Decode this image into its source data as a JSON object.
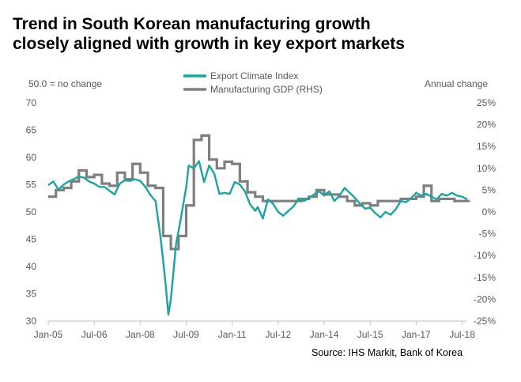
{
  "title_line1": "Trend in South Korean manufacturing growth",
  "title_line2": "closely aligned with growth in key export markets",
  "left_axis_note": "50.0 = no change",
  "right_axis_note": "Annual change",
  "source": "Source: IHS Markit, Bank of Korea",
  "colors": {
    "eci": "#1aa5a0",
    "gdp": "#7f7f7f",
    "axis": "#bfbfbf"
  },
  "chart_data": {
    "type": "line",
    "title": "Trend in South Korean manufacturing growth closely aligned with growth in key export markets",
    "x_ticks": [
      "Jan-05",
      "Jul-06",
      "Jan-08",
      "Jul-09",
      "Jan-11",
      "Jul-12",
      "Jan-14",
      "Jul-15",
      "Jan-17",
      "Jul-18"
    ],
    "x_range": [
      "2005-01",
      "2018-09"
    ],
    "y_left": {
      "label": "50.0 = no change",
      "ylim": [
        30,
        70
      ],
      "ticks": [
        30,
        35,
        40,
        45,
        50,
        55,
        60,
        65,
        70
      ]
    },
    "y_right": {
      "label": "Annual change",
      "ylim": [
        -25,
        25
      ],
      "ticks": [
        "-25%",
        "-20%",
        "-15%",
        "-10%",
        "-5%",
        "0%",
        "5%",
        "10%",
        "15%",
        "20%",
        "25%"
      ]
    },
    "legend_position": "top-center",
    "grid": false,
    "series": [
      {
        "name": "Export Climate Index",
        "axis": "left",
        "color": "#1aa5a0",
        "points": [
          [
            "2005-01",
            54.9
          ],
          [
            "2005-03",
            55.6
          ],
          [
            "2005-05",
            54.1
          ],
          [
            "2005-07",
            55.0
          ],
          [
            "2005-09",
            55.6
          ],
          [
            "2005-11",
            56.0
          ],
          [
            "2006-01",
            56.5
          ],
          [
            "2006-03",
            56.3
          ],
          [
            "2006-05",
            55.6
          ],
          [
            "2006-07",
            55.2
          ],
          [
            "2006-09",
            54.6
          ],
          [
            "2006-11",
            54.6
          ],
          [
            "2007-01",
            53.9
          ],
          [
            "2007-03",
            53.2
          ],
          [
            "2007-05",
            55.2
          ],
          [
            "2007-07",
            55.8
          ],
          [
            "2007-09",
            55.7
          ],
          [
            "2007-11",
            56.0
          ],
          [
            "2008-01",
            55.7
          ],
          [
            "2008-03",
            54.6
          ],
          [
            "2008-05",
            53.1
          ],
          [
            "2008-07",
            52.0
          ],
          [
            "2008-08",
            48.6
          ],
          [
            "2008-09",
            45.2
          ],
          [
            "2008-10",
            41.0
          ],
          [
            "2008-11",
            36.5
          ],
          [
            "2008-12",
            31.2
          ],
          [
            "2009-01",
            34.0
          ],
          [
            "2009-02",
            39.0
          ],
          [
            "2009-03",
            44.0
          ],
          [
            "2009-05",
            49.0
          ],
          [
            "2009-07",
            54.5
          ],
          [
            "2009-08",
            58.5
          ],
          [
            "2009-10",
            58.0
          ],
          [
            "2009-12",
            59.3
          ],
          [
            "2010-02",
            55.5
          ],
          [
            "2010-04",
            58.5
          ],
          [
            "2010-06",
            57.0
          ],
          [
            "2010-08",
            53.3
          ],
          [
            "2010-10",
            53.5
          ],
          [
            "2010-12",
            53.3
          ],
          [
            "2011-02",
            55.5
          ],
          [
            "2011-04",
            55.0
          ],
          [
            "2011-06",
            53.8
          ],
          [
            "2011-08",
            51.4
          ],
          [
            "2011-10",
            50.2
          ],
          [
            "2011-11",
            50.9
          ],
          [
            "2012-01",
            48.8
          ],
          [
            "2012-03",
            52.3
          ],
          [
            "2012-05",
            51.5
          ],
          [
            "2012-07",
            50.0
          ],
          [
            "2012-09",
            49.3
          ],
          [
            "2012-11",
            50.2
          ],
          [
            "2013-01",
            51.0
          ],
          [
            "2013-03",
            52.5
          ],
          [
            "2013-05",
            52.0
          ],
          [
            "2013-07",
            52.5
          ],
          [
            "2013-09",
            53.2
          ],
          [
            "2013-11",
            53.8
          ],
          [
            "2014-01",
            53.0
          ],
          [
            "2014-03",
            53.8
          ],
          [
            "2014-05",
            52.0
          ],
          [
            "2014-07",
            53.0
          ],
          [
            "2014-09",
            54.4
          ],
          [
            "2014-11",
            53.5
          ],
          [
            "2015-01",
            52.6
          ],
          [
            "2015-03",
            51.5
          ],
          [
            "2015-05",
            50.6
          ],
          [
            "2015-07",
            50.8
          ],
          [
            "2015-09",
            49.8
          ],
          [
            "2015-11",
            49.0
          ],
          [
            "2016-01",
            50.0
          ],
          [
            "2016-03",
            49.5
          ],
          [
            "2016-05",
            50.5
          ],
          [
            "2016-07",
            52.0
          ],
          [
            "2016-09",
            51.8
          ],
          [
            "2016-11",
            52.5
          ],
          [
            "2017-01",
            53.5
          ],
          [
            "2017-03",
            53.0
          ],
          [
            "2017-05",
            53.3
          ],
          [
            "2017-07",
            52.8
          ],
          [
            "2017-09",
            52.3
          ],
          [
            "2017-11",
            53.3
          ],
          [
            "2018-01",
            53.0
          ],
          [
            "2018-03",
            53.5
          ],
          [
            "2018-05",
            53.0
          ],
          [
            "2018-07",
            52.8
          ],
          [
            "2018-09",
            52.3
          ]
        ]
      },
      {
        "name": "Manufacturing GDP (RHS)",
        "axis": "right",
        "color": "#7f7f7f",
        "steps": [
          [
            "2005-01",
            3.5
          ],
          [
            "2005-04",
            5.0
          ],
          [
            "2005-07",
            5.5
          ],
          [
            "2005-10",
            7.0
          ],
          [
            "2006-01",
            9.5
          ],
          [
            "2006-04",
            8.0
          ],
          [
            "2006-07",
            8.5
          ],
          [
            "2006-10",
            6.5
          ],
          [
            "2007-01",
            6.0
          ],
          [
            "2007-04",
            9.0
          ],
          [
            "2007-07",
            7.5
          ],
          [
            "2007-10",
            11.0
          ],
          [
            "2008-01",
            9.0
          ],
          [
            "2008-04",
            6.0
          ],
          [
            "2008-07",
            5.5
          ],
          [
            "2008-10",
            -5.5
          ],
          [
            "2009-01",
            -8.5
          ],
          [
            "2009-04",
            -5.5
          ],
          [
            "2009-07",
            1.5
          ],
          [
            "2009-10",
            16.5
          ],
          [
            "2010-01",
            17.5
          ],
          [
            "2010-04",
            12.0
          ],
          [
            "2010-07",
            10.0
          ],
          [
            "2010-10",
            11.5
          ],
          [
            "2011-01",
            11.0
          ],
          [
            "2011-04",
            7.0
          ],
          [
            "2011-07",
            4.5
          ],
          [
            "2011-10",
            3.5
          ],
          [
            "2012-01",
            2.5
          ],
          [
            "2012-04",
            2.5
          ],
          [
            "2012-07",
            2.5
          ],
          [
            "2012-10",
            2.5
          ],
          [
            "2013-01",
            2.5
          ],
          [
            "2013-04",
            3.0
          ],
          [
            "2013-07",
            3.5
          ],
          [
            "2013-10",
            5.0
          ],
          [
            "2014-01",
            4.0
          ],
          [
            "2014-04",
            4.0
          ],
          [
            "2014-07",
            3.5
          ],
          [
            "2014-10",
            2.5
          ],
          [
            "2015-01",
            1.5
          ],
          [
            "2015-04",
            2.0
          ],
          [
            "2015-07",
            1.5
          ],
          [
            "2015-10",
            2.5
          ],
          [
            "2016-01",
            2.5
          ],
          [
            "2016-04",
            2.5
          ],
          [
            "2016-07",
            3.0
          ],
          [
            "2016-10",
            3.0
          ],
          [
            "2017-01",
            3.5
          ],
          [
            "2017-04",
            6.0
          ],
          [
            "2017-07",
            2.5
          ],
          [
            "2017-10",
            3.0
          ],
          [
            "2018-01",
            3.0
          ],
          [
            "2018-04",
            2.5
          ],
          [
            "2018-07",
            2.5
          ],
          [
            "2018-10",
            2.5
          ]
        ]
      }
    ]
  }
}
